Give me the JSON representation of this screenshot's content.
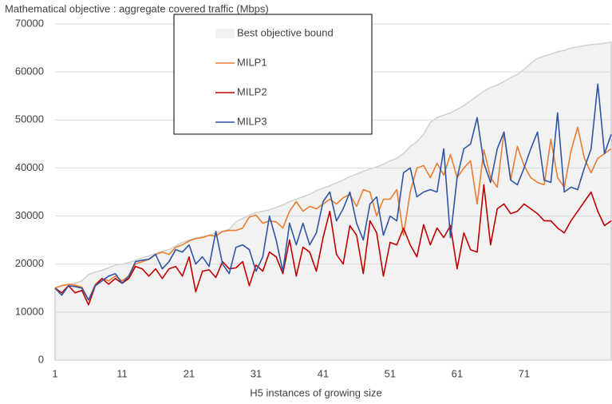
{
  "chart_data": {
    "type": "line",
    "title": "Mathematical objective : aggregate covered traffic (Mbps)",
    "x_label": "H5 instances of growing size",
    "x": [
      1,
      2,
      3,
      4,
      5,
      6,
      7,
      8,
      9,
      10,
      11,
      12,
      13,
      14,
      15,
      16,
      17,
      18,
      19,
      20,
      21,
      22,
      23,
      24,
      25,
      26,
      27,
      28,
      29,
      30,
      31,
      32,
      33,
      34,
      35,
      36,
      37,
      38,
      39,
      40,
      41,
      42,
      43,
      44,
      45,
      46,
      47,
      48,
      49,
      50,
      51,
      52,
      53,
      54,
      55,
      56,
      57,
      58,
      59,
      60,
      61,
      62,
      63,
      64,
      65,
      66,
      67,
      68,
      69,
      70,
      71,
      72,
      73,
      74,
      75,
      76,
      77,
      78,
      79,
      80,
      81,
      82,
      83,
      84
    ],
    "xlim": [
      1,
      84
    ],
    "xticks": [
      1,
      11,
      21,
      31,
      41,
      51,
      61,
      71
    ],
    "ylim": [
      0,
      70000
    ],
    "yticks": [
      0,
      10000,
      20000,
      30000,
      40000,
      50000,
      60000,
      70000
    ],
    "grid": true,
    "series": [
      {
        "name": "Best objective bound",
        "style": "area",
        "color": "#f2f2f2",
        "values": [
          15000,
          15500,
          15800,
          16000,
          16500,
          17800,
          18300,
          18700,
          19200,
          19800,
          20000,
          20300,
          20800,
          21300,
          21700,
          22200,
          22700,
          23000,
          23800,
          24500,
          25000,
          25400,
          25700,
          26000,
          26500,
          26800,
          27200,
          28800,
          29500,
          30200,
          30700,
          31000,
          31300,
          31800,
          32300,
          33000,
          33500,
          34000,
          34500,
          35300,
          35800,
          36300,
          36900,
          37500,
          38200,
          38700,
          39300,
          39800,
          40200,
          40800,
          41500,
          42000,
          43000,
          44500,
          45500,
          47000,
          49500,
          50500,
          51000,
          51500,
          52200,
          53000,
          54000,
          55000,
          56000,
          56800,
          57300,
          58000,
          58800,
          59500,
          60500,
          61800,
          62800,
          63300,
          63700,
          64200,
          64500,
          65000,
          65200,
          65500,
          65700,
          65800,
          66000,
          66200
        ]
      },
      {
        "name": "MILP1",
        "style": "line",
        "color": "#ed7d31",
        "values": [
          15000,
          15500,
          15800,
          15600,
          15200,
          12500,
          15800,
          17000,
          16500,
          17500,
          16500,
          17500,
          20000,
          20500,
          21000,
          22000,
          22500,
          22000,
          23500,
          24000,
          24800,
          25300,
          25500,
          26000,
          25800,
          26800,
          27000,
          27000,
          27500,
          29800,
          30200,
          28500,
          29000,
          28800,
          27500,
          31000,
          33000,
          31000,
          32000,
          31500,
          32500,
          33500,
          32500,
          33800,
          34500,
          32000,
          35500,
          35000,
          30000,
          33500,
          33500,
          35500,
          26000,
          35000,
          40000,
          40500,
          38000,
          41000,
          38500,
          42800,
          38000,
          40000,
          41500,
          32500,
          43800,
          38000,
          36000,
          47500,
          37500,
          44500,
          40500,
          38000,
          37000,
          36500,
          46000,
          38000,
          36000,
          43500,
          48500,
          42000,
          39000,
          42000,
          43000,
          44000
        ]
      },
      {
        "name": "MILP2",
        "style": "line",
        "color": "#c00000",
        "values": [
          15000,
          14000,
          15500,
          14000,
          14500,
          11500,
          15500,
          17000,
          15800,
          17000,
          16000,
          17000,
          19500,
          19000,
          17500,
          19000,
          17000,
          19000,
          19500,
          17500,
          21500,
          14200,
          18500,
          18800,
          17200,
          20500,
          19000,
          19200,
          20500,
          15500,
          19800,
          18500,
          22500,
          21500,
          18000,
          25000,
          17500,
          23500,
          22500,
          18500,
          25500,
          31000,
          22000,
          20000,
          28000,
          26000,
          18000,
          29000,
          26500,
          17500,
          24500,
          24000,
          27500,
          24000,
          21500,
          28200,
          24000,
          27500,
          25500,
          28000,
          19000,
          26500,
          23000,
          22500,
          36500,
          24000,
          31500,
          32500,
          30500,
          31000,
          32500,
          31500,
          30500,
          29000,
          29000,
          27500,
          26500,
          29000,
          31000,
          33000,
          35000,
          31000,
          28000,
          29000
        ]
      },
      {
        "name": "MILP3",
        "style": "line",
        "color": "#2f55a4",
        "values": [
          15000,
          13500,
          15500,
          15300,
          15000,
          12500,
          15500,
          16500,
          17500,
          18000,
          16000,
          17500,
          20500,
          20800,
          21000,
          22000,
          19000,
          20500,
          23000,
          22500,
          24000,
          20000,
          21500,
          19500,
          26800,
          20000,
          18000,
          23500,
          24000,
          23000,
          18500,
          21500,
          30000,
          25000,
          18500,
          28500,
          24000,
          28500,
          24000,
          26500,
          33000,
          35000,
          29000,
          31500,
          35000,
          28500,
          25000,
          32500,
          34000,
          26000,
          30000,
          29000,
          39000,
          40000,
          34000,
          35000,
          35500,
          35000,
          44000,
          25500,
          38000,
          44000,
          45000,
          50500,
          41000,
          37000,
          44000,
          47500,
          37500,
          36500,
          40000,
          44000,
          47500,
          37500,
          37000,
          51500,
          35000,
          36000,
          35500,
          40000,
          44000,
          57500,
          43000,
          47000
        ]
      }
    ]
  }
}
